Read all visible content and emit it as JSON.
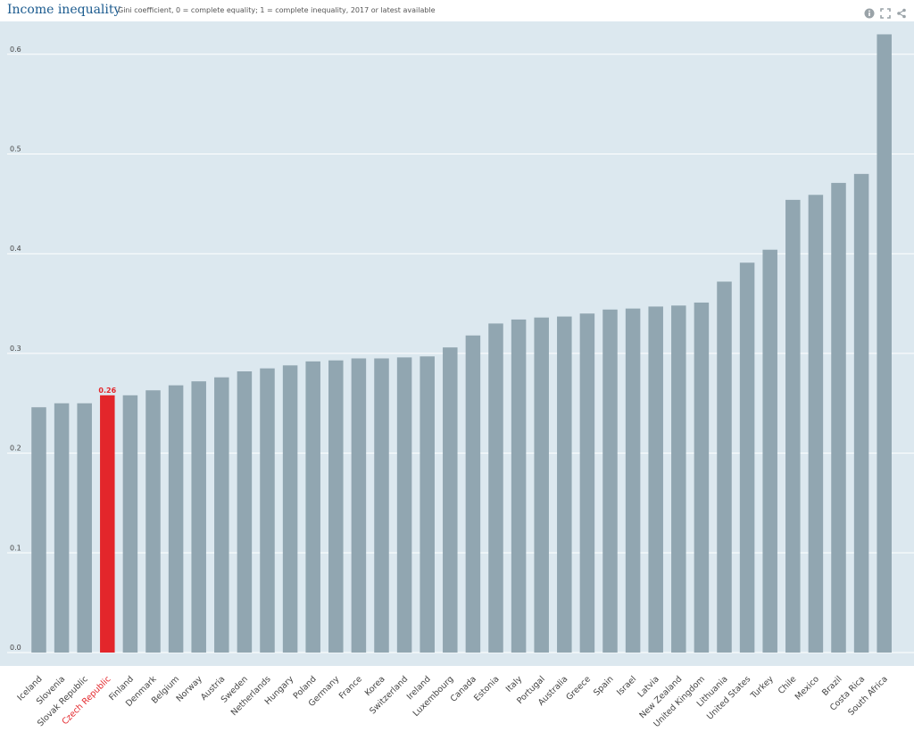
{
  "header": {
    "title": "Income inequality",
    "subtitle": "Gini coefficient, 0 = complete equality; 1 = complete inequality, 2017 or latest available"
  },
  "icons": [
    "info-icon",
    "fullscreen-icon",
    "share-icon"
  ],
  "colors": {
    "plot_bg": "#dce8ef",
    "bar": "#91a6b1",
    "highlight": "#e3262b",
    "grid": "#ffffff",
    "tick_text": "#444444"
  },
  "chart_data": {
    "type": "bar",
    "title": "Income inequality",
    "subtitle": "Gini coefficient, 0 = complete equality; 1 = complete inequality, 2017 or latest available",
    "ylim": [
      0,
      0.62
    ],
    "yticks": [
      "0.0",
      "0.1",
      "0.2",
      "0.3",
      "0.4",
      "0.5",
      "0.6"
    ],
    "grid": true,
    "highlight_index": 3,
    "highlight_label": "0.26",
    "categories": [
      "Iceland",
      "Slovenia",
      "Slovak Republic",
      "Czech Republic",
      "Finland",
      "Denmark",
      "Belgium",
      "Norway",
      "Austria",
      "Sweden",
      "Netherlands",
      "Hungary",
      "Poland",
      "Germany",
      "France",
      "Korea",
      "Switzerland",
      "Ireland",
      "Luxembourg",
      "Canada",
      "Estonia",
      "Italy",
      "Portugal",
      "Australia",
      "Greece",
      "Spain",
      "Israel",
      "Latvia",
      "New Zealand",
      "United Kingdom",
      "Lithuania",
      "United States",
      "Turkey",
      "Chile",
      "Mexico",
      "Brazil",
      "Costa Rica",
      "South Africa"
    ],
    "values": [
      0.246,
      0.25,
      0.25,
      0.258,
      0.258,
      0.263,
      0.268,
      0.272,
      0.276,
      0.282,
      0.285,
      0.288,
      0.292,
      0.293,
      0.295,
      0.295,
      0.296,
      0.297,
      0.306,
      0.318,
      0.33,
      0.334,
      0.336,
      0.337,
      0.34,
      0.344,
      0.345,
      0.347,
      0.348,
      0.351,
      0.372,
      0.391,
      0.404,
      0.454,
      0.459,
      0.471,
      0.48,
      0.62
    ]
  }
}
